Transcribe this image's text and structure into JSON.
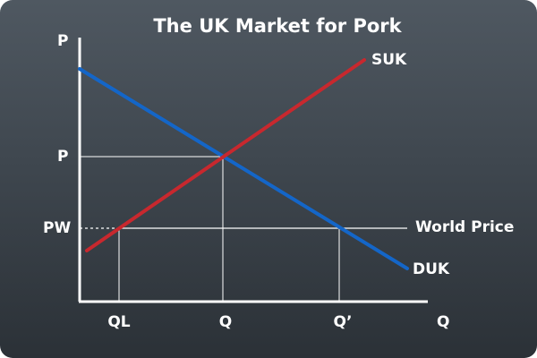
{
  "title": "The UK Market for Pork",
  "axes": {
    "y_label": "P",
    "x_label": "Q"
  },
  "y_ticks": {
    "equilibrium_price": "P",
    "world_price": "PW"
  },
  "x_ticks": {
    "domestic_quantity": "QL",
    "equilibrium_quantity": "Q",
    "total_demand_at_world_price": "Q’"
  },
  "curves": {
    "supply": "SUK",
    "demand": "DUK",
    "world_price": "World Price"
  },
  "colors": {
    "supply": "#c8282e",
    "demand": "#1466c8",
    "guide": "#ffffff",
    "axis": "#ffffff"
  }
}
